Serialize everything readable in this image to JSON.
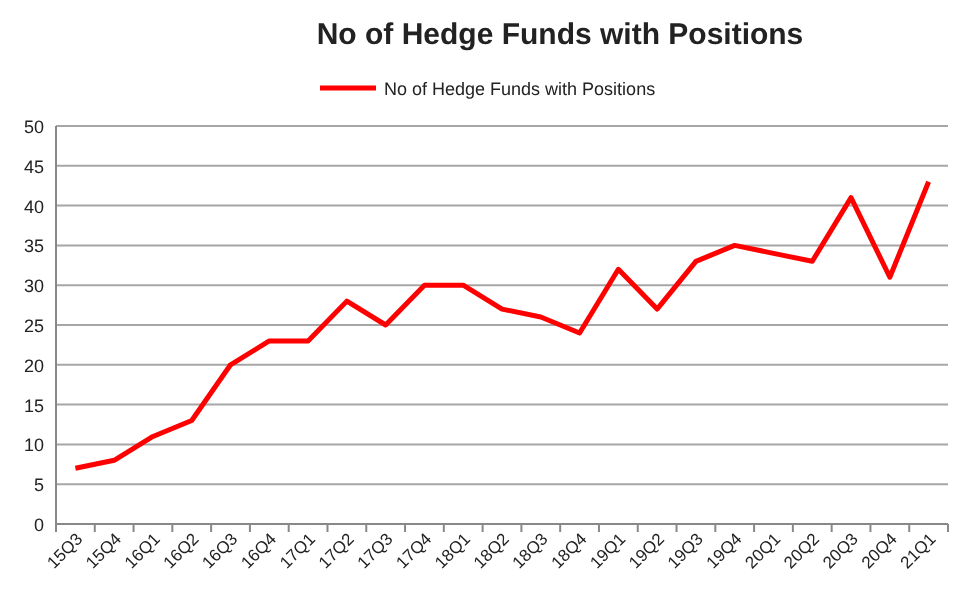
{
  "chart_data": {
    "type": "line",
    "title": "No of Hedge Funds with Positions",
    "categories": [
      "15Q3",
      "15Q4",
      "16Q1",
      "16Q2",
      "16Q3",
      "16Q4",
      "17Q1",
      "17Q2",
      "17Q3",
      "17Q4",
      "18Q1",
      "18Q2",
      "18Q3",
      "18Q4",
      "19Q1",
      "19Q2",
      "19Q3",
      "19Q4",
      "20Q1",
      "20Q2",
      "20Q3",
      "20Q4",
      "21Q1"
    ],
    "series": [
      {
        "name": "No of Hedge Funds with Positions",
        "color": "#ff0000",
        "values": [
          7,
          8,
          11,
          13,
          20,
          23,
          23,
          28,
          25,
          30,
          30,
          27,
          26,
          24,
          32,
          27,
          33,
          35,
          34,
          33,
          41,
          31,
          43
        ]
      }
    ],
    "ylim": [
      0,
      50
    ],
    "yticks": [
      0,
      5,
      10,
      15,
      20,
      25,
      30,
      35,
      40,
      45,
      50
    ],
    "grid": "y",
    "legend": "top",
    "marker": "none",
    "line_style": "solid"
  }
}
